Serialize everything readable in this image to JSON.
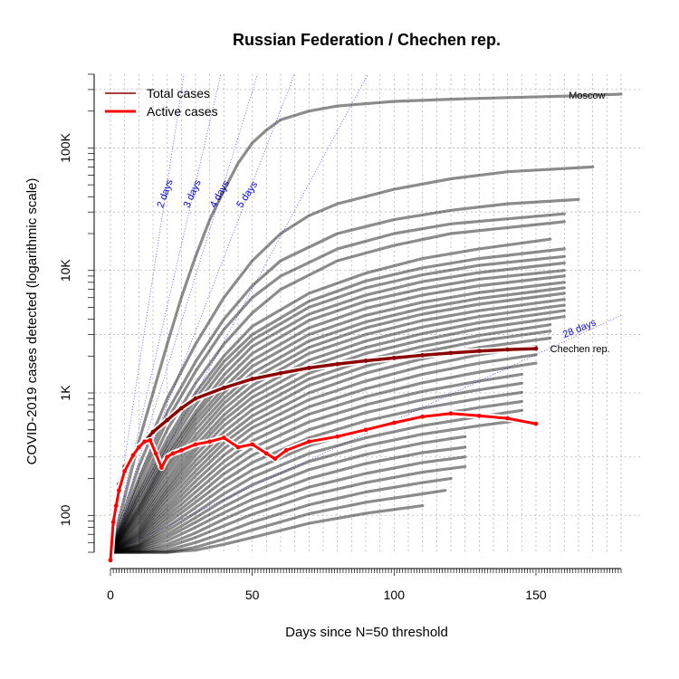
{
  "chart_data": {
    "type": "line",
    "title": "Russian Federation / Chechen rep.",
    "xlabel": "Days since N=50 threshold",
    "ylabel": "COVID-2019 cases detected (logarithmic scale)",
    "xlim": [
      0,
      180
    ],
    "ylim": [
      50,
      400000
    ],
    "y_scale": "log",
    "x_ticks": [
      0,
      50,
      100,
      150
    ],
    "x_tick_labels": [
      "0",
      "50",
      "100",
      "150"
    ],
    "y_ticks": [
      100,
      1000,
      10000,
      100000
    ],
    "y_tick_labels": [
      "100",
      "1K",
      "10K",
      "100K"
    ],
    "grid": true,
    "legend_position": "top-left",
    "legend": [
      {
        "label": "Total cases",
        "color": "#8b0000"
      },
      {
        "label": "Active cases",
        "color": "#ff0000"
      }
    ],
    "doubling_reference_lines": [
      {
        "label": "2 days",
        "days": 2
      },
      {
        "label": "3 days",
        "days": 3
      },
      {
        "label": "4 days",
        "days": 4
      },
      {
        "label": "5 days",
        "days": 5
      },
      {
        "label": "28 days",
        "days": 28
      },
      {
        "label": "days",
        "days": 7
      }
    ],
    "annotations": [
      {
        "label": "Moscow",
        "x": 168,
        "y": 270000
      },
      {
        "label": "Chechen rep.",
        "x": 155,
        "y": 2300
      }
    ],
    "highlighted_series": [
      {
        "name": "Total cases",
        "color": "#8b0000",
        "x": [
          0,
          1,
          2,
          3,
          5,
          8,
          10,
          12,
          15,
          20,
          25,
          30,
          40,
          50,
          60,
          70,
          80,
          90,
          100,
          110,
          120,
          130,
          140,
          150
        ],
        "y": [
          50,
          90,
          130,
          180,
          250,
          320,
          360,
          400,
          480,
          600,
          750,
          900,
          1100,
          1300,
          1450,
          1600,
          1720,
          1830,
          1930,
          2030,
          2120,
          2200,
          2260,
          2300
        ]
      },
      {
        "name": "Active cases",
        "color": "#ff0000",
        "x": [
          0,
          1,
          2,
          3,
          5,
          8,
          10,
          12,
          14,
          16,
          18,
          20,
          22,
          25,
          30,
          35,
          40,
          45,
          50,
          55,
          58,
          62,
          70,
          80,
          90,
          100,
          110,
          120,
          130,
          140,
          150
        ],
        "y": [
          43,
          88,
          120,
          160,
          230,
          310,
          360,
          400,
          410,
          320,
          245,
          300,
          320,
          340,
          380,
          400,
          430,
          360,
          380,
          320,
          290,
          340,
          400,
          440,
          500,
          570,
          640,
          680,
          650,
          620,
          560
        ]
      }
    ],
    "background_series": [
      {
        "name": "Moscow",
        "x": [
          0,
          5,
          10,
          15,
          20,
          25,
          30,
          35,
          40,
          45,
          50,
          55,
          60,
          70,
          80,
          100,
          120,
          140,
          160,
          180
        ],
        "y": [
          50,
          140,
          400,
          1000,
          2500,
          6000,
          13000,
          26000,
          45000,
          75000,
          110000,
          140000,
          170000,
          200000,
          220000,
          240000,
          250000,
          258000,
          265000,
          275000
        ]
      },
      {
        "x": [
          0,
          10,
          20,
          30,
          40,
          50,
          60,
          70,
          80,
          100,
          120,
          140,
          170
        ],
        "y": [
          50,
          250,
          900,
          2500,
          6000,
          12000,
          20000,
          28000,
          35000,
          46000,
          56000,
          64000,
          70000
        ]
      },
      {
        "x": [
          0,
          10,
          20,
          30,
          40,
          50,
          60,
          80,
          100,
          120,
          140,
          165
        ],
        "y": [
          50,
          200,
          700,
          1800,
          4000,
          7500,
          12000,
          20000,
          26000,
          31000,
          35000,
          38000
        ]
      },
      {
        "x": [
          0,
          10,
          20,
          30,
          40,
          50,
          60,
          80,
          100,
          120,
          160
        ],
        "y": [
          50,
          180,
          600,
          1500,
          3300,
          6000,
          9000,
          15000,
          20000,
          24000,
          29000
        ]
      },
      {
        "x": [
          0,
          10,
          20,
          30,
          40,
          50,
          60,
          80,
          100,
          120,
          160
        ],
        "y": [
          50,
          160,
          500,
          1200,
          2500,
          4500,
          7000,
          12000,
          16000,
          20000,
          25000
        ]
      },
      {
        "x": [
          0,
          10,
          20,
          30,
          40,
          50,
          70,
          90,
          110,
          130,
          155
        ],
        "y": [
          50,
          150,
          420,
          1000,
          2000,
          3500,
          6500,
          9500,
          12500,
          15000,
          18000
        ]
      },
      {
        "x": [
          0,
          10,
          20,
          30,
          40,
          50,
          70,
          90,
          110,
          130,
          160
        ],
        "y": [
          50,
          140,
          380,
          900,
          1800,
          3000,
          5600,
          8200,
          10500,
          12500,
          15000
        ]
      },
      {
        "x": [
          0,
          10,
          20,
          30,
          40,
          50,
          70,
          90,
          110,
          130,
          160
        ],
        "y": [
          50,
          130,
          350,
          800,
          1600,
          2700,
          5000,
          7200,
          9200,
          11000,
          13000
        ]
      },
      {
        "x": [
          0,
          10,
          20,
          30,
          40,
          50,
          70,
          90,
          110,
          130,
          160
        ],
        "y": [
          50,
          120,
          320,
          700,
          1400,
          2400,
          4400,
          6300,
          8100,
          9600,
          11500
        ]
      },
      {
        "x": [
          0,
          10,
          20,
          30,
          40,
          50,
          70,
          90,
          110,
          130,
          160
        ],
        "y": [
          50,
          115,
          300,
          650,
          1250,
          2100,
          3900,
          5600,
          7100,
          8500,
          10000
        ]
      },
      {
        "x": [
          0,
          10,
          20,
          30,
          40,
          50,
          70,
          90,
          110,
          130,
          160
        ],
        "y": [
          50,
          110,
          280,
          600,
          1100,
          1850,
          3400,
          4900,
          6300,
          7500,
          9000
        ]
      },
      {
        "x": [
          0,
          10,
          20,
          30,
          40,
          50,
          70,
          90,
          110,
          130,
          160
        ],
        "y": [
          50,
          105,
          260,
          550,
          1000,
          1650,
          3000,
          4300,
          5500,
          6600,
          8000
        ]
      },
      {
        "x": [
          0,
          10,
          20,
          30,
          40,
          50,
          70,
          90,
          110,
          130,
          160
        ],
        "y": [
          50,
          100,
          240,
          500,
          900,
          1450,
          2650,
          3800,
          4900,
          5900,
          7200
        ]
      },
      {
        "x": [
          0,
          10,
          20,
          30,
          40,
          50,
          70,
          90,
          110,
          130,
          160
        ],
        "y": [
          50,
          95,
          220,
          450,
          820,
          1300,
          2350,
          3400,
          4400,
          5300,
          6500
        ]
      },
      {
        "x": [
          0,
          10,
          20,
          30,
          40,
          50,
          70,
          90,
          110,
          130,
          160
        ],
        "y": [
          50,
          90,
          200,
          410,
          740,
          1150,
          2100,
          3000,
          3900,
          4700,
          5800
        ]
      },
      {
        "x": [
          0,
          10,
          20,
          30,
          40,
          50,
          70,
          90,
          110,
          130,
          160
        ],
        "y": [
          50,
          86,
          185,
          370,
          660,
          1030,
          1850,
          2650,
          3450,
          4200,
          5200
        ]
      },
      {
        "x": [
          0,
          10,
          20,
          30,
          40,
          50,
          70,
          90,
          110,
          130,
          160
        ],
        "y": [
          50,
          82,
          170,
          340,
          600,
          920,
          1650,
          2350,
          3050,
          3750,
          4700
        ]
      },
      {
        "x": [
          0,
          10,
          20,
          30,
          40,
          50,
          70,
          90,
          110,
          130,
          160
        ],
        "y": [
          50,
          78,
          160,
          310,
          540,
          820,
          1450,
          2100,
          2700,
          3350,
          4200
        ]
      },
      {
        "x": [
          0,
          10,
          20,
          30,
          40,
          50,
          70,
          90,
          110,
          130,
          155
        ],
        "y": [
          50,
          75,
          150,
          280,
          480,
          730,
          1300,
          1850,
          2400,
          2950,
          3600
        ]
      },
      {
        "x": [
          0,
          10,
          20,
          30,
          40,
          50,
          70,
          90,
          110,
          130,
          155
        ],
        "y": [
          50,
          72,
          140,
          255,
          430,
          650,
          1150,
          1650,
          2150,
          2650,
          3200
        ]
      },
      {
        "x": [
          0,
          10,
          20,
          30,
          40,
          50,
          70,
          90,
          110,
          130,
          155
        ],
        "y": [
          50,
          70,
          130,
          230,
          390,
          580,
          1000,
          1450,
          1900,
          2350,
          2800
        ]
      },
      {
        "x": [
          0,
          10,
          20,
          30,
          40,
          50,
          70,
          90,
          110,
          130,
          150
        ],
        "y": [
          50,
          68,
          120,
          210,
          350,
          520,
          880,
          1250,
          1650,
          2050,
          2400
        ]
      },
      {
        "x": [
          0,
          10,
          20,
          30,
          40,
          50,
          70,
          90,
          110,
          130,
          150
        ],
        "y": [
          50,
          66,
          112,
          190,
          310,
          460,
          770,
          1080,
          1420,
          1750,
          2050
        ]
      },
      {
        "x": [
          0,
          10,
          20,
          30,
          40,
          50,
          70,
          90,
          110,
          130,
          150
        ],
        "y": [
          50,
          64,
          105,
          172,
          275,
          405,
          670,
          930,
          1210,
          1480,
          1750
        ]
      },
      {
        "x": [
          0,
          10,
          20,
          30,
          40,
          50,
          70,
          90,
          110,
          130,
          145
        ],
        "y": [
          50,
          62,
          98,
          155,
          245,
          355,
          580,
          800,
          1030,
          1250,
          1420
        ]
      },
      {
        "x": [
          0,
          10,
          20,
          30,
          40,
          50,
          70,
          90,
          110,
          130,
          145
        ],
        "y": [
          50,
          60,
          92,
          140,
          218,
          310,
          500,
          690,
          880,
          1060,
          1200
        ]
      },
      {
        "x": [
          0,
          10,
          20,
          30,
          40,
          50,
          70,
          90,
          110,
          130,
          145
        ],
        "y": [
          50,
          58,
          86,
          128,
          192,
          270,
          430,
          590,
          750,
          900,
          1010
        ]
      },
      {
        "x": [
          0,
          10,
          20,
          30,
          40,
          50,
          70,
          90,
          110,
          130,
          145
        ],
        "y": [
          50,
          57,
          80,
          116,
          170,
          235,
          370,
          505,
          635,
          760,
          850
        ]
      },
      {
        "x": [
          0,
          10,
          20,
          30,
          40,
          50,
          70,
          90,
          110,
          130,
          145
        ],
        "y": [
          50,
          56,
          75,
          105,
          150,
          205,
          320,
          430,
          540,
          640,
          720
        ]
      },
      {
        "x": [
          0,
          10,
          20,
          30,
          40,
          50,
          70,
          90,
          110,
          130,
          145
        ],
        "y": [
          50,
          55,
          70,
          96,
          133,
          178,
          275,
          370,
          460,
          540,
          600
        ]
      },
      {
        "x": [
          0,
          10,
          20,
          30,
          40,
          50,
          70,
          90,
          110,
          125
        ],
        "y": [
          50,
          54,
          66,
          88,
          118,
          155,
          236,
          315,
          390,
          440
        ]
      },
      {
        "x": [
          0,
          10,
          20,
          30,
          40,
          50,
          70,
          90,
          110,
          125
        ],
        "y": [
          50,
          53,
          62,
          80,
          105,
          135,
          200,
          265,
          325,
          360
        ]
      },
      {
        "x": [
          0,
          10,
          20,
          30,
          40,
          50,
          70,
          90,
          110,
          125
        ],
        "y": [
          50,
          52,
          58,
          72,
          93,
          118,
          170,
          220,
          270,
          300
        ]
      },
      {
        "x": [
          0,
          10,
          20,
          30,
          40,
          50,
          70,
          90,
          110,
          125
        ],
        "y": [
          50,
          51,
          55,
          66,
          82,
          102,
          145,
          185,
          225,
          250
        ]
      },
      {
        "x": [
          0,
          10,
          20,
          30,
          40,
          50,
          70,
          90,
          110,
          120
        ],
        "y": [
          50,
          50,
          52,
          60,
          72,
          88,
          122,
          155,
          185,
          200
        ]
      },
      {
        "x": [
          0,
          10,
          20,
          30,
          40,
          50,
          70,
          90,
          110,
          118
        ],
        "y": [
          50,
          50,
          50,
          55,
          64,
          76,
          103,
          128,
          150,
          160
        ]
      },
      {
        "x": [
          0,
          10,
          20,
          30,
          40,
          50,
          70,
          90,
          110
        ],
        "y": [
          50,
          50,
          50,
          52,
          58,
          66,
          86,
          104,
          120
        ]
      }
    ]
  }
}
